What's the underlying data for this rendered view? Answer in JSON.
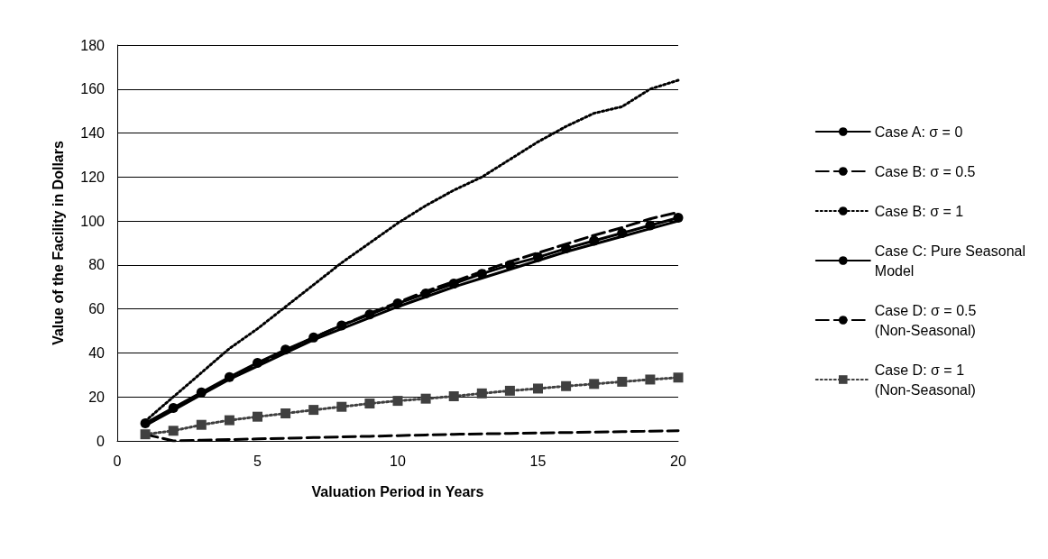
{
  "chart_data": {
    "type": "line",
    "xlabel": "Valuation Period in Years",
    "ylabel": "Value of the Facility in Dollars",
    "x": [
      1,
      2,
      3,
      4,
      5,
      6,
      7,
      8,
      9,
      10,
      11,
      12,
      13,
      14,
      15,
      16,
      17,
      18,
      19,
      20
    ],
    "series": [
      {
        "name": "Case A: σ = 0",
        "color": "#000000",
        "line_style": "solid",
        "marker": "none",
        "values": [
          7,
          14,
          21,
          28,
          34,
          40,
          46,
          51,
          56,
          61,
          65.5,
          70,
          74,
          78,
          82,
          86,
          89.5,
          93,
          96.5,
          100
        ]
      },
      {
        "name": "Case B: σ = 0.5",
        "color": "#000000",
        "line_style": "dashed",
        "marker": "none",
        "values": [
          7,
          14.5,
          21.5,
          28.5,
          35,
          41,
          47,
          52.5,
          58,
          63,
          68,
          72.5,
          77,
          81.5,
          85.5,
          89.5,
          93.5,
          97,
          101,
          104
        ]
      },
      {
        "name": "Case B: σ = 1",
        "color": "#000000",
        "line_style": "dotted",
        "marker": "none",
        "values": [
          9,
          20,
          31,
          42,
          51,
          61,
          71,
          81,
          90,
          99,
          107,
          114,
          120,
          128,
          136,
          143,
          149,
          152,
          160,
          164
        ]
      },
      {
        "name": "Case C: Pure Seasonal Model",
        "color": "#000000",
        "line_style": "solid",
        "marker": "circle",
        "values": [
          8,
          15,
          22,
          29,
          35.5,
          41.5,
          47,
          52.5,
          57.5,
          62.5,
          67,
          71.5,
          76,
          80,
          83.5,
          87.5,
          91,
          94.5,
          98,
          101.5
        ]
      },
      {
        "name": "Case D: σ = 0.5 (Non-Seasonal)",
        "color": "#000000",
        "line_style": "dashed",
        "marker": "none",
        "values": [
          3,
          0,
          0.3,
          0.6,
          0.9,
          1.2,
          1.5,
          1.8,
          2.1,
          2.4,
          2.7,
          3,
          3.2,
          3.4,
          3.6,
          3.8,
          4,
          4.2,
          4.4,
          4.6
        ]
      },
      {
        "name": "Case D: σ = 1 (Non-Seasonal)",
        "color": "#404040",
        "line_style": "dotted",
        "marker": "square",
        "values": [
          3,
          4.6,
          7.3,
          9.4,
          11,
          12.5,
          14.1,
          15.5,
          17,
          18.2,
          19.2,
          20.3,
          21.6,
          22.8,
          23.8,
          24.9,
          25.9,
          26.9,
          27.9,
          28.8
        ]
      }
    ],
    "xlim": [
      0,
      20
    ],
    "xticks": [
      0,
      5,
      10,
      15,
      20
    ],
    "ylim": [
      0,
      180
    ],
    "yticks": [
      0,
      20,
      40,
      60,
      80,
      100,
      120,
      140,
      160,
      180
    ],
    "grid": "y",
    "legend": "right"
  }
}
